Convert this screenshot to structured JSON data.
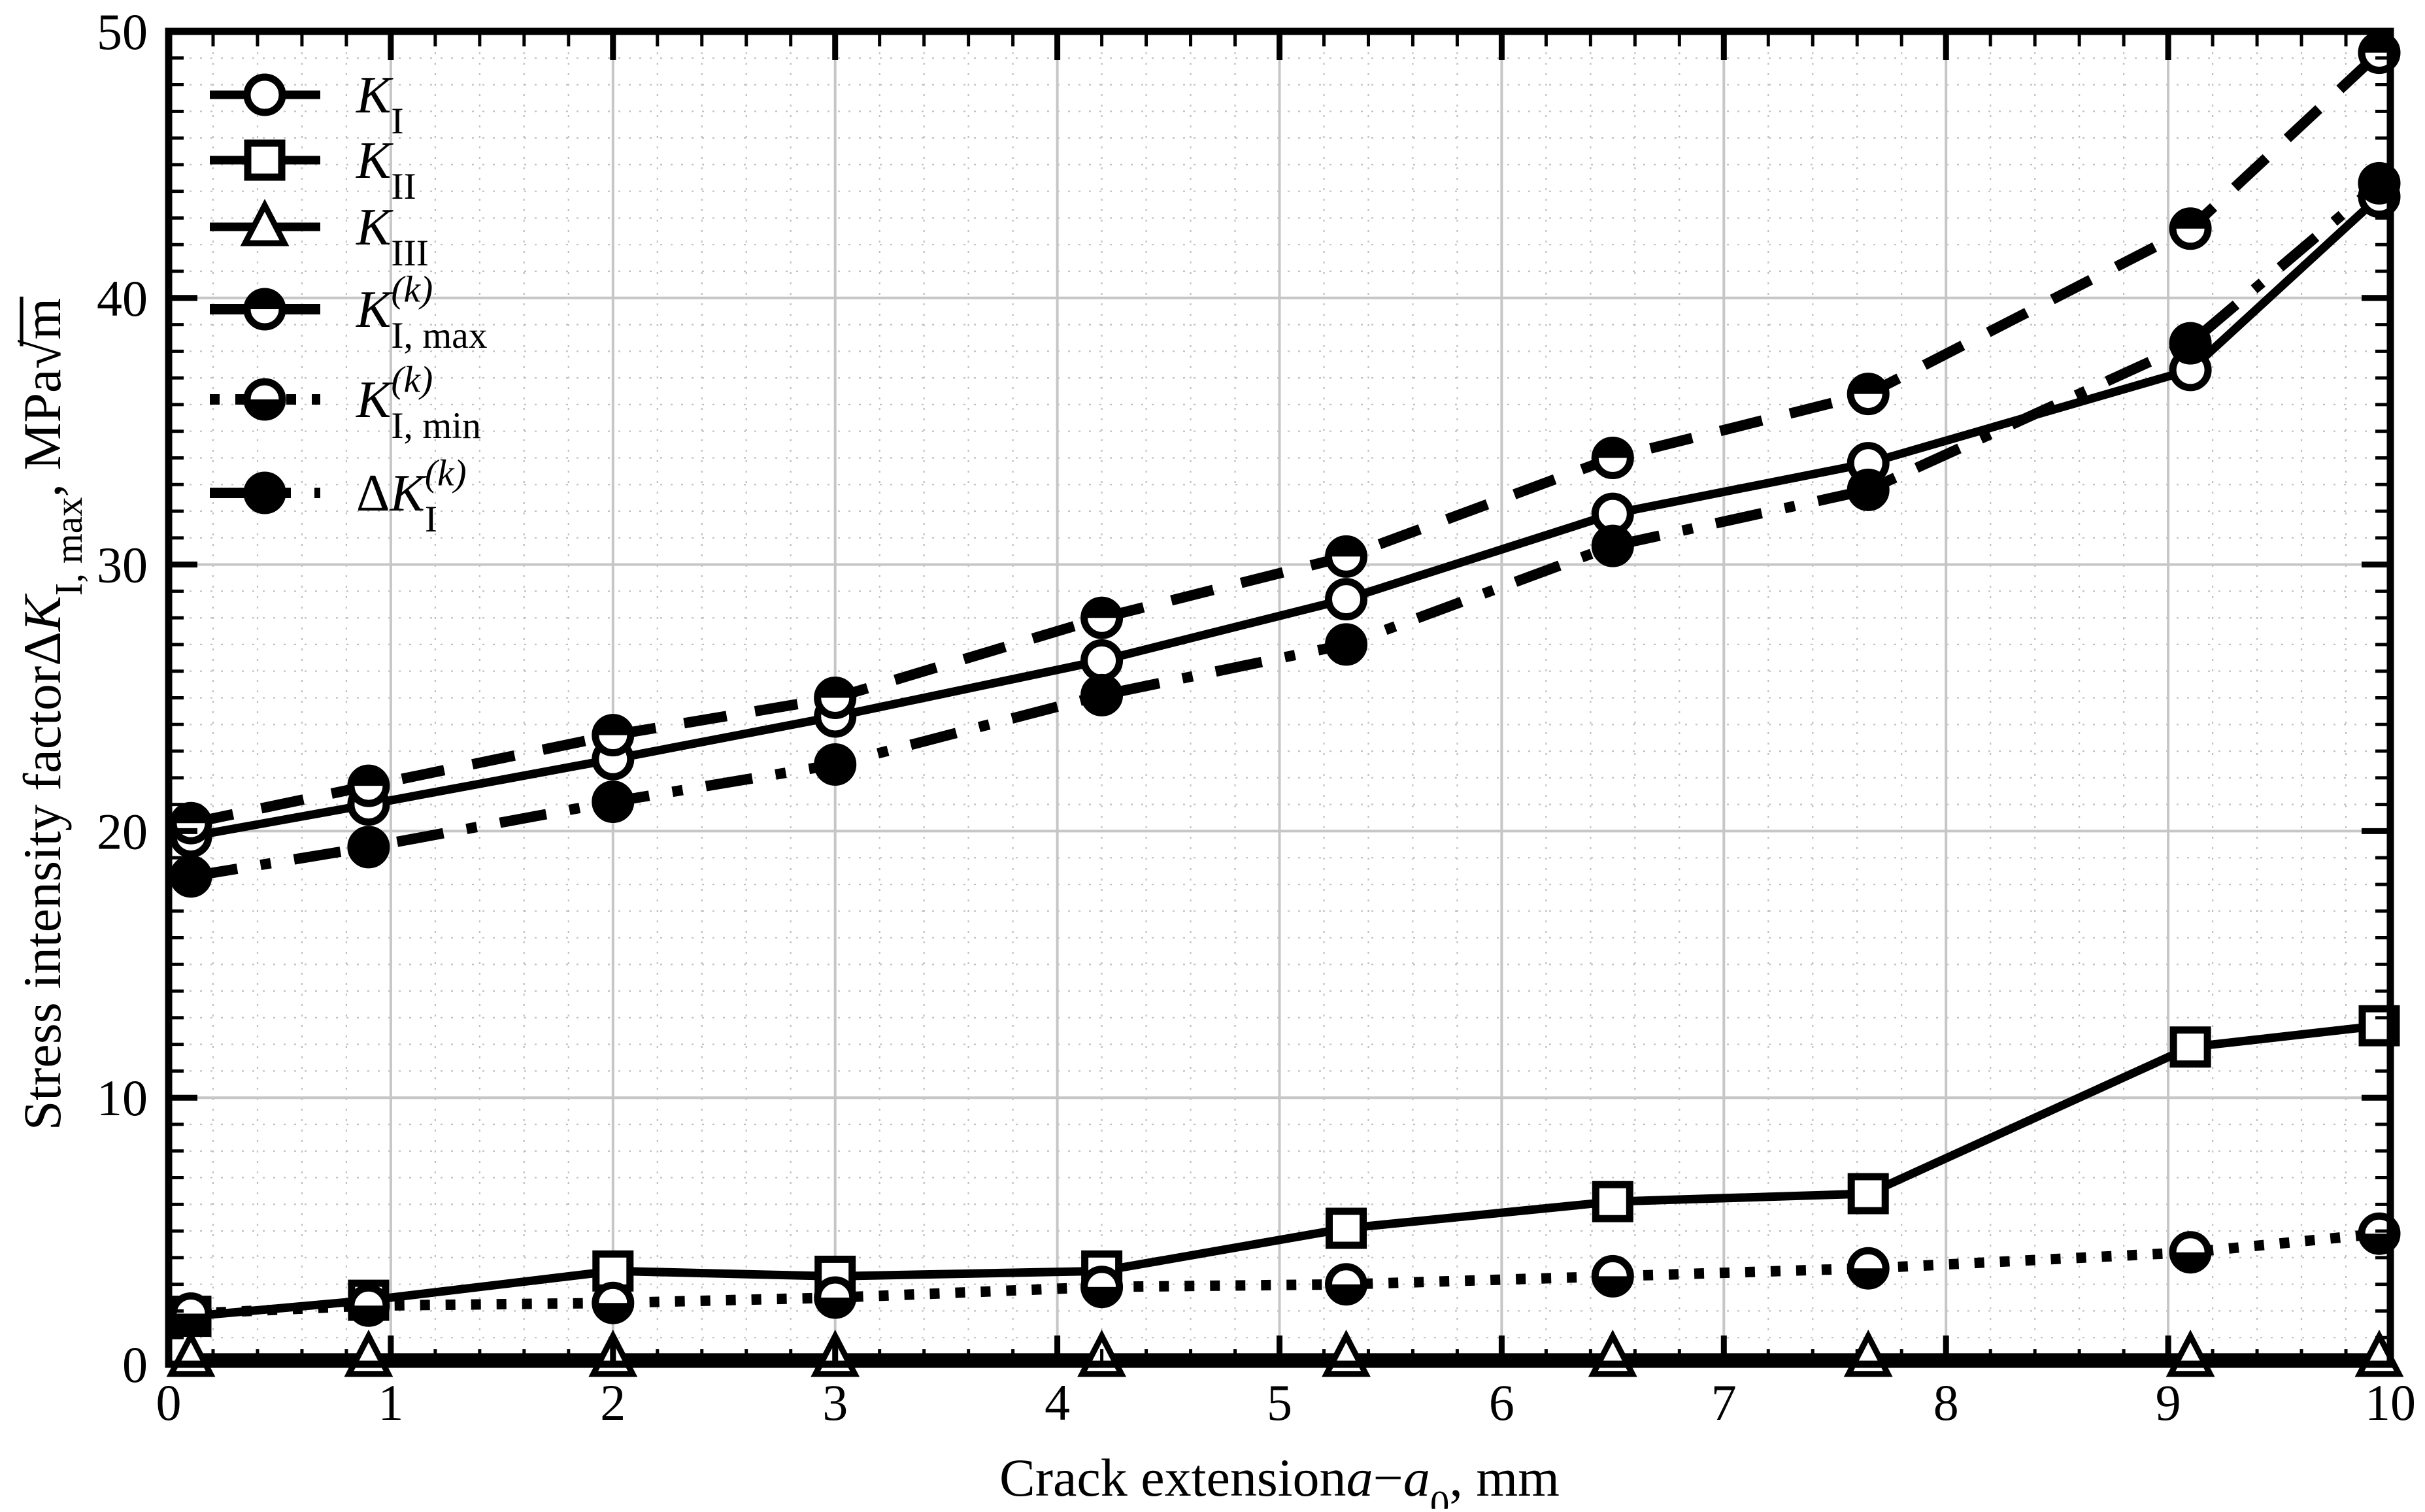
{
  "page": {
    "background": "#ffffff"
  },
  "chart_data": {
    "type": "line",
    "title": "",
    "xlabel": "Crack extension a − a0, mm",
    "ylabel": "Stress intensity factor ΔK_I,max, MPa√m",
    "xlabel_parts": [
      {
        "t": "Crack extension "
      },
      {
        "t": "a",
        "italic": true
      },
      {
        "t": " − "
      },
      {
        "t": "a",
        "italic": true
      },
      {
        "t": "0",
        "pos": "sub"
      },
      {
        "t": ", mm"
      }
    ],
    "ylabel_parts": [
      {
        "t": "Stress intensity factor "
      },
      {
        "t": "Δ"
      },
      {
        "t": "K",
        "italic": true
      },
      {
        "t": "I, max",
        "pos": "sub"
      },
      {
        "t": ", MPa"
      },
      {
        "t": "√"
      },
      {
        "t": "m",
        "overline": true
      }
    ],
    "xlim": [
      0,
      10
    ],
    "ylim": [
      0,
      50
    ],
    "x_major_ticks": [
      "0",
      "1",
      "2",
      "3",
      "4",
      "5",
      "6",
      "7",
      "8",
      "9",
      "10"
    ],
    "y_major_ticks": [
      "0",
      "10",
      "20",
      "30",
      "40",
      "50"
    ],
    "x_minor_step": 0.2,
    "y_minor_step": 1,
    "grid": {
      "major_solid": true,
      "minor_dotted": true
    },
    "legend_position": "top-left",
    "x": [
      0.1,
      0.9,
      2.0,
      3.0,
      4.2,
      5.3,
      6.5,
      7.65,
      9.1,
      9.95
    ],
    "series": [
      {
        "id": "KI",
        "legend_parts": [
          {
            "t": "K",
            "italic": true
          },
          {
            "t": "I",
            "pos": "sub"
          }
        ],
        "marker": "circle-open",
        "line": "solid",
        "values": [
          19.8,
          21.0,
          22.7,
          24.3,
          26.4,
          28.7,
          31.9,
          33.8,
          37.3,
          43.8
        ]
      },
      {
        "id": "KII",
        "legend_parts": [
          {
            "t": "K",
            "italic": true
          },
          {
            "t": "II",
            "pos": "sub"
          }
        ],
        "marker": "square-open",
        "line": "solid",
        "values": [
          1.8,
          2.4,
          3.5,
          3.3,
          3.5,
          5.1,
          6.1,
          6.4,
          11.9,
          12.7
        ]
      },
      {
        "id": "KIII",
        "legend_parts": [
          {
            "t": "K",
            "italic": true
          },
          {
            "t": "III",
            "pos": "sub"
          }
        ],
        "marker": "triangle-open",
        "line": "solid",
        "values": [
          0.25,
          0.25,
          0.25,
          0.25,
          0.25,
          0.25,
          0.25,
          0.25,
          0.25,
          0.25
        ]
      },
      {
        "id": "KImax",
        "legend_parts": [
          {
            "t": "K",
            "italic": true
          },
          {
            "t": "(k)",
            "pos": "sup",
            "italic": true
          },
          {
            "t": "I, max",
            "pos": "sub"
          }
        ],
        "marker": "circle-half-top",
        "line": "dashed",
        "values": [
          20.3,
          21.7,
          23.6,
          25.0,
          28.0,
          30.3,
          34.0,
          36.4,
          42.6,
          49.2
        ]
      },
      {
        "id": "KImin",
        "legend_parts": [
          {
            "t": "K",
            "italic": true
          },
          {
            "t": "(k)",
            "pos": "sup",
            "italic": true
          },
          {
            "t": "I, min",
            "pos": "sub"
          }
        ],
        "marker": "circle-half-bottom",
        "line": "dotted",
        "values": [
          1.9,
          2.2,
          2.3,
          2.5,
          2.9,
          3.0,
          3.3,
          3.6,
          4.2,
          4.9
        ]
      },
      {
        "id": "dKI",
        "legend_parts": [
          {
            "t": "Δ"
          },
          {
            "t": "K",
            "italic": true
          },
          {
            "t": "(k)",
            "pos": "sup",
            "italic": true
          },
          {
            "t": "I",
            "pos": "sub"
          }
        ],
        "marker": "circle-filled",
        "line": "dashdot",
        "values": [
          18.3,
          19.4,
          21.1,
          22.5,
          25.1,
          27.0,
          30.7,
          32.8,
          38.3,
          44.3
        ]
      }
    ],
    "colors": {
      "stroke": "#000000",
      "background": "#ffffff",
      "grid_major": "#c6c6c6",
      "grid_minor": "#ababab"
    }
  }
}
